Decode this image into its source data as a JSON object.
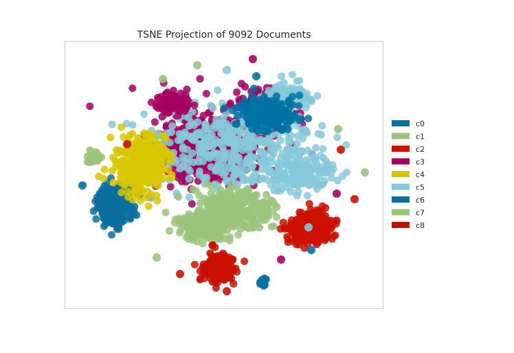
{
  "chart_data": {
    "type": "scatter",
    "title": "TSNE Projection of 9092 Documents",
    "xlabel": "",
    "ylabel": "",
    "grid": false,
    "legend_position": "right",
    "series": [
      {
        "name": "c0",
        "color": "#0072a5"
      },
      {
        "name": "c1",
        "color": "#9bc47b"
      },
      {
        "name": "c2",
        "color": "#cc1100"
      },
      {
        "name": "c3",
        "color": "#a50062"
      },
      {
        "name": "c4",
        "color": "#d8c700"
      },
      {
        "name": "c5",
        "color": "#86c9d9"
      },
      {
        "name": "c6",
        "color": "#0b6f9f"
      },
      {
        "name": "c7",
        "color": "#9bc47b"
      },
      {
        "name": "c8",
        "color": "#c90f00"
      }
    ]
  }
}
